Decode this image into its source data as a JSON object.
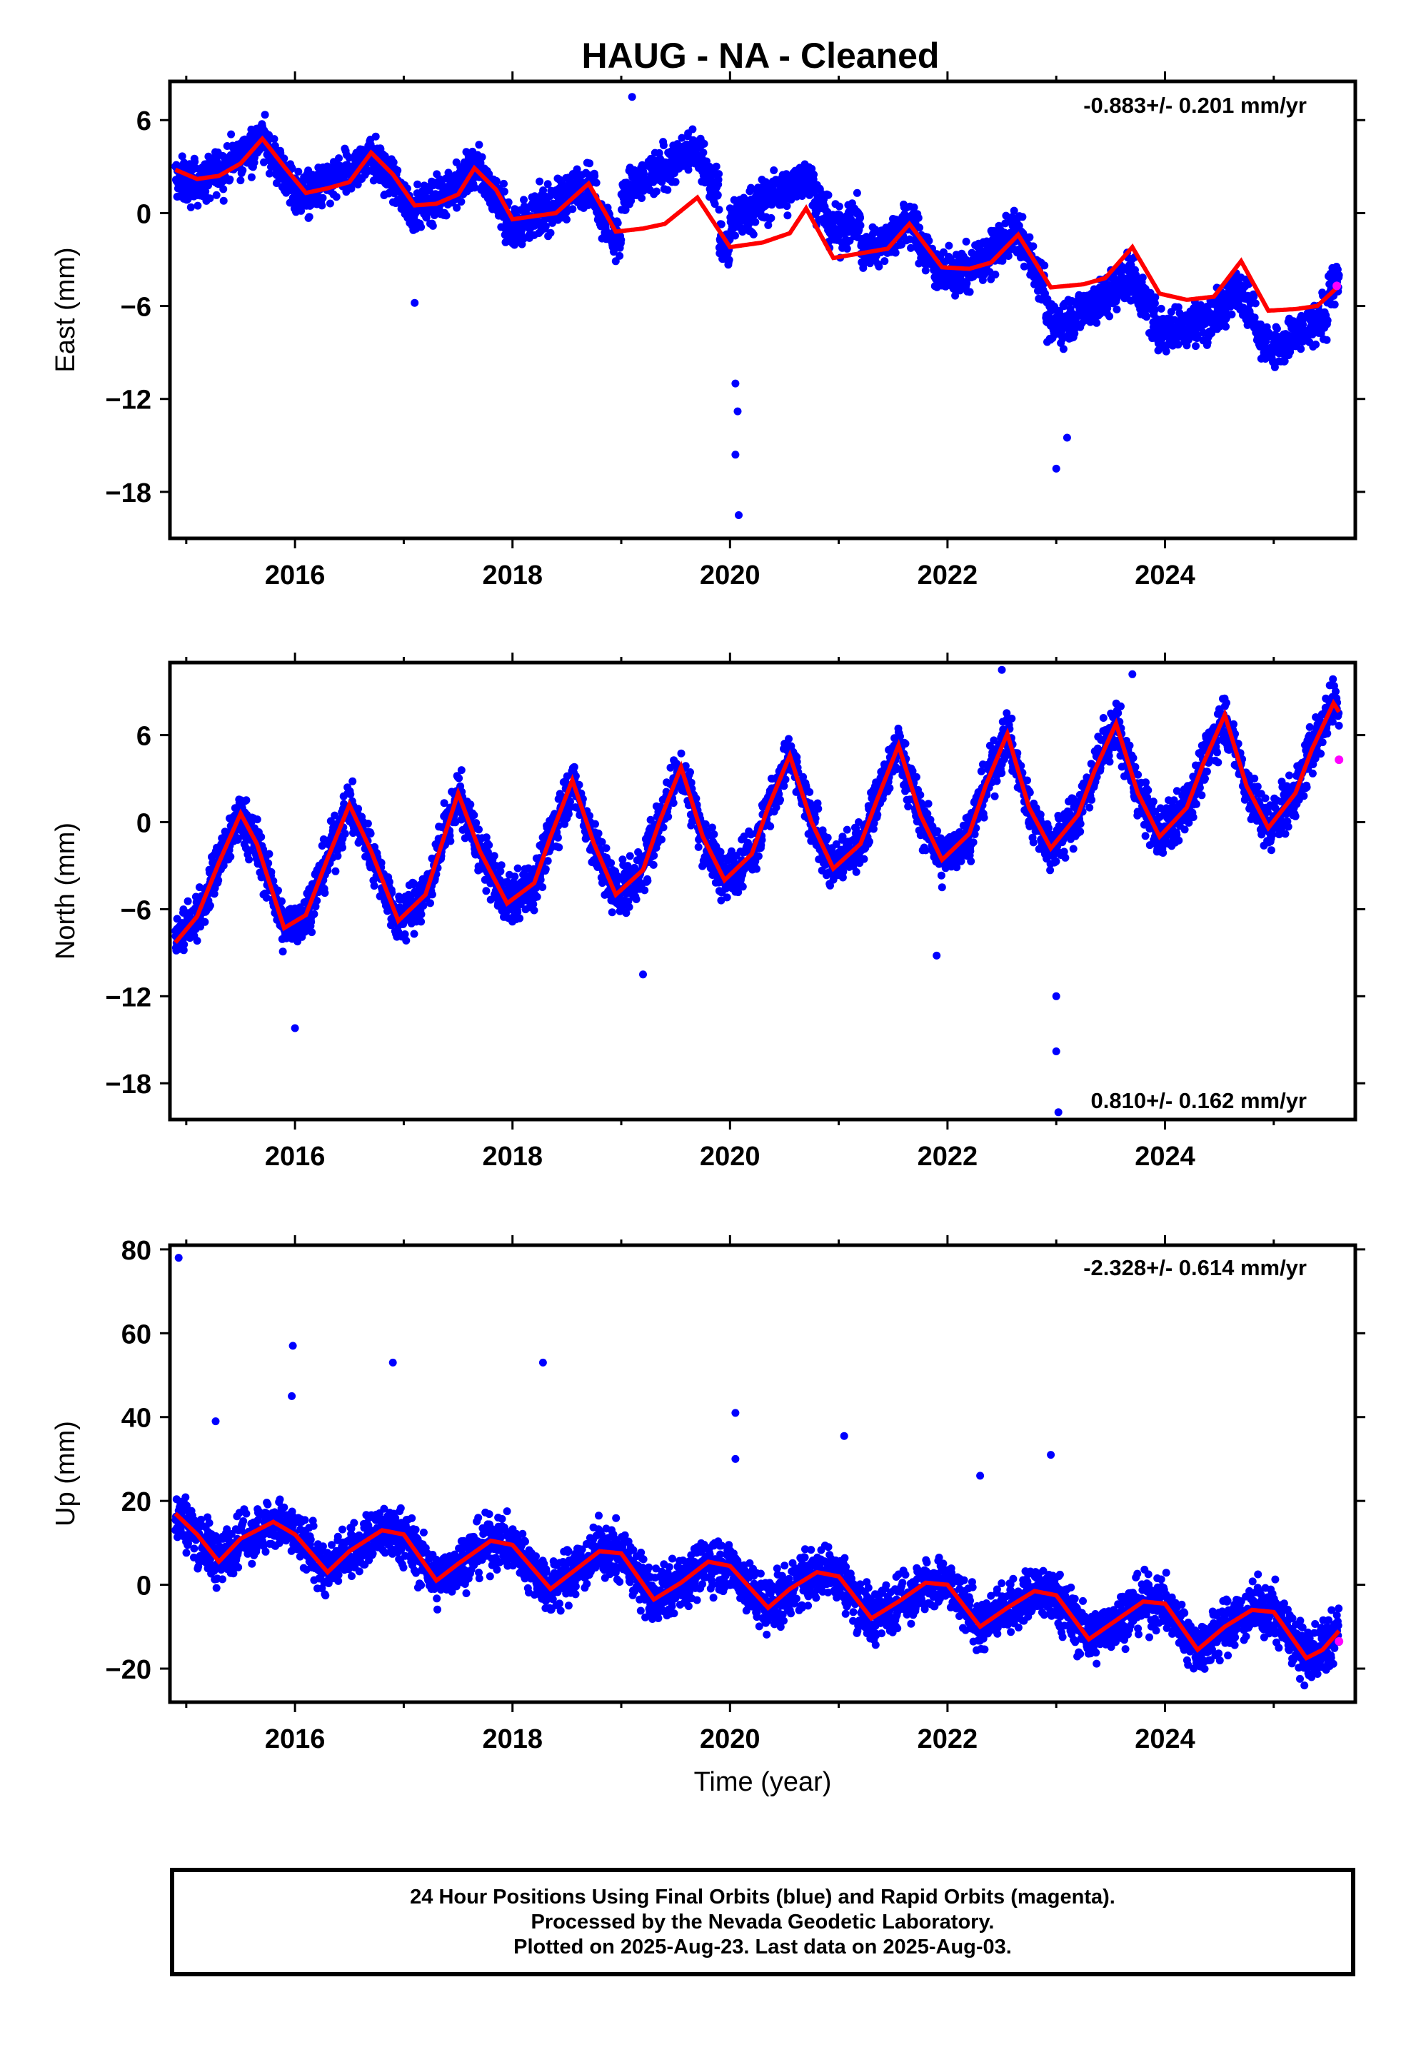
{
  "title": "HAUG  - NA - Cleaned",
  "xlabel": "Time (year)",
  "colors": {
    "final": "#0000ff",
    "rapid": "#ff00ff",
    "model": "#ff0000",
    "axis": "#000000"
  },
  "footer": {
    "line1": "24 Hour Positions Using Final Orbits (blue) and Rapid Orbits (magenta).",
    "line2": "Processed by the Nevada Geodetic Laboratory.",
    "line3": "Plotted on 2025-Aug-23. Last data on 2025-Aug-03."
  },
  "chart_data": [
    {
      "type": "scatter",
      "name": "east",
      "ylabel": "East (mm)",
      "rate": "-0.883+/- 0.201 mm/yr",
      "xlim": [
        2014.85,
        2025.75
      ],
      "ylim": [
        -21,
        8.5
      ],
      "xticks": [
        2016,
        2018,
        2020,
        2022,
        2024
      ],
      "yticks": [
        6,
        0,
        -6,
        -12,
        -18
      ],
      "ytick_labels": [
        "6",
        "0",
        "−6",
        "−12",
        "−18"
      ],
      "model": [
        [
          2014.9,
          2.8
        ],
        [
          2015.1,
          2.2
        ],
        [
          2015.3,
          2.4
        ],
        [
          2015.5,
          3.2
        ],
        [
          2015.7,
          4.8
        ],
        [
          2015.9,
          3.0
        ],
        [
          2016.1,
          1.3
        ],
        [
          2016.3,
          1.6
        ],
        [
          2016.5,
          2.0
        ],
        [
          2016.7,
          3.9
        ],
        [
          2016.9,
          2.5
        ],
        [
          2017.1,
          0.5
        ],
        [
          2017.3,
          0.6
        ],
        [
          2017.5,
          1.2
        ],
        [
          2017.65,
          2.9
        ],
        [
          2017.85,
          1.5
        ],
        [
          2018.0,
          -0.4
        ],
        [
          2018.2,
          -0.2
        ],
        [
          2018.4,
          0.0
        ],
        [
          2018.7,
          1.9
        ],
        [
          2018.95,
          -1.2
        ],
        [
          2019.2,
          -1.0
        ],
        [
          2019.4,
          -0.7
        ],
        [
          2019.7,
          1.0
        ],
        [
          2020.0,
          -2.2
        ],
        [
          2020.3,
          -1.9
        ],
        [
          2020.55,
          -1.3
        ],
        [
          2020.7,
          0.3
        ],
        [
          2020.95,
          -2.9
        ],
        [
          2021.2,
          -2.6
        ],
        [
          2021.45,
          -2.3
        ],
        [
          2021.65,
          -0.7
        ],
        [
          2021.95,
          -3.5
        ],
        [
          2022.2,
          -3.6
        ],
        [
          2022.4,
          -3.2
        ],
        [
          2022.65,
          -1.4
        ],
        [
          2022.95,
          -4.8
        ],
        [
          2023.25,
          -4.6
        ],
        [
          2023.45,
          -4.2
        ],
        [
          2023.7,
          -2.2
        ],
        [
          2023.95,
          -5.2
        ],
        [
          2024.2,
          -5.6
        ],
        [
          2024.45,
          -5.4
        ],
        [
          2024.7,
          -3.1
        ],
        [
          2024.95,
          -6.3
        ],
        [
          2025.2,
          -6.2
        ],
        [
          2025.4,
          -6.0
        ],
        [
          2025.6,
          -4.7
        ]
      ],
      "rapid": [
        [
          2025.58,
          -4.7
        ]
      ],
      "amplitude": 2.2,
      "spread": 1.0
    },
    {
      "type": "scatter",
      "name": "north",
      "ylabel": "North (mm)",
      "rate": "0.810+/- 0.162 mm/yr",
      "xlim": [
        2014.85,
        2025.75
      ],
      "ylim": [
        -20.5,
        11
      ],
      "xticks": [
        2016,
        2018,
        2020,
        2022,
        2024
      ],
      "yticks": [
        6,
        0,
        -6,
        -12,
        -18
      ],
      "ytick_labels": [
        "6",
        "0",
        "−6",
        "−12",
        "−18"
      ],
      "model": [
        [
          2014.9,
          -8.3
        ],
        [
          2015.1,
          -6.5
        ],
        [
          2015.3,
          -2.8
        ],
        [
          2015.5,
          0.6
        ],
        [
          2015.65,
          -1.5
        ],
        [
          2015.9,
          -7.3
        ],
        [
          2016.1,
          -6.4
        ],
        [
          2016.3,
          -2.5
        ],
        [
          2016.5,
          1.2
        ],
        [
          2016.7,
          -2.0
        ],
        [
          2016.95,
          -6.8
        ],
        [
          2017.2,
          -5.0
        ],
        [
          2017.35,
          -1.5
        ],
        [
          2017.5,
          2.0
        ],
        [
          2017.7,
          -2.0
        ],
        [
          2017.95,
          -5.6
        ],
        [
          2018.2,
          -4.2
        ],
        [
          2018.35,
          -1.0
        ],
        [
          2018.55,
          2.9
        ],
        [
          2018.75,
          -1.5
        ],
        [
          2018.95,
          -5.0
        ],
        [
          2019.2,
          -3.3
        ],
        [
          2019.35,
          0.0
        ],
        [
          2019.55,
          3.8
        ],
        [
          2019.75,
          -1.0
        ],
        [
          2019.95,
          -4.0
        ],
        [
          2020.2,
          -2.2
        ],
        [
          2020.35,
          1.0
        ],
        [
          2020.55,
          4.6
        ],
        [
          2020.75,
          0.0
        ],
        [
          2020.95,
          -3.2
        ],
        [
          2021.2,
          -1.5
        ],
        [
          2021.35,
          1.5
        ],
        [
          2021.55,
          5.3
        ],
        [
          2021.75,
          0.5
        ],
        [
          2021.95,
          -2.6
        ],
        [
          2022.2,
          -0.8
        ],
        [
          2022.35,
          2.5
        ],
        [
          2022.55,
          6.1
        ],
        [
          2022.75,
          1.0
        ],
        [
          2022.95,
          -1.8
        ],
        [
          2023.2,
          0.5
        ],
        [
          2023.35,
          3.5
        ],
        [
          2023.55,
          6.8
        ],
        [
          2023.75,
          2.0
        ],
        [
          2023.95,
          -1.0
        ],
        [
          2024.2,
          1.0
        ],
        [
          2024.35,
          4.0
        ],
        [
          2024.55,
          7.4
        ],
        [
          2024.75,
          2.5
        ],
        [
          2024.95,
          -0.4
        ],
        [
          2025.2,
          2.0
        ],
        [
          2025.35,
          5.0
        ],
        [
          2025.55,
          8.2
        ],
        [
          2025.6,
          7.6
        ]
      ],
      "rapid": [
        [
          2025.6,
          4.3
        ]
      ],
      "amplitude": 0.0,
      "spread": 1.2
    },
    {
      "type": "scatter",
      "name": "up",
      "ylabel": "Up (mm)",
      "rate": "-2.328+/- 0.614 mm/yr",
      "xlim": [
        2014.85,
        2025.75
      ],
      "ylim": [
        -28,
        81
      ],
      "xticks": [
        2016,
        2018,
        2020,
        2022,
        2024
      ],
      "yticks": [
        80,
        60,
        40,
        20,
        0,
        -20
      ],
      "ytick_labels": [
        "80",
        "60",
        "40",
        "20",
        "0",
        "−20"
      ],
      "model": [
        [
          2014.9,
          17.0
        ],
        [
          2015.1,
          12.0
        ],
        [
          2015.3,
          5.5
        ],
        [
          2015.5,
          11.0
        ],
        [
          2015.8,
          15.0
        ],
        [
          2016.0,
          12.0
        ],
        [
          2016.3,
          3.0
        ],
        [
          2016.5,
          8.0
        ],
        [
          2016.8,
          13.0
        ],
        [
          2017.0,
          12.0
        ],
        [
          2017.3,
          1.0
        ],
        [
          2017.5,
          5.0
        ],
        [
          2017.8,
          10.5
        ],
        [
          2018.0,
          9.5
        ],
        [
          2018.35,
          -1.0
        ],
        [
          2018.55,
          3.0
        ],
        [
          2018.8,
          8.0
        ],
        [
          2019.0,
          7.5
        ],
        [
          2019.3,
          -3.5
        ],
        [
          2019.55,
          0.5
        ],
        [
          2019.8,
          5.5
        ],
        [
          2020.0,
          4.5
        ],
        [
          2020.35,
          -5.5
        ],
        [
          2020.55,
          -1.0
        ],
        [
          2020.8,
          3.0
        ],
        [
          2021.0,
          2.0
        ],
        [
          2021.3,
          -8.0
        ],
        [
          2021.55,
          -4.0
        ],
        [
          2021.8,
          0.5
        ],
        [
          2022.0,
          0.0
        ],
        [
          2022.3,
          -10.0
        ],
        [
          2022.55,
          -5.5
        ],
        [
          2022.8,
          -1.5
        ],
        [
          2023.0,
          -2.5
        ],
        [
          2023.3,
          -13.0
        ],
        [
          2023.55,
          -8.5
        ],
        [
          2023.8,
          -4.0
        ],
        [
          2024.0,
          -4.5
        ],
        [
          2024.3,
          -15.5
        ],
        [
          2024.55,
          -10.0
        ],
        [
          2024.8,
          -6.0
        ],
        [
          2025.0,
          -6.5
        ],
        [
          2025.3,
          -17.5
        ],
        [
          2025.45,
          -15.5
        ],
        [
          2025.6,
          -11.0
        ]
      ],
      "rapid": [
        [
          2025.6,
          -13.5
        ]
      ],
      "amplitude": 0.0,
      "spread": 4.5,
      "outliers": [
        [
          2014.93,
          78
        ],
        [
          2015.27,
          39
        ],
        [
          2015.98,
          57
        ],
        [
          2015.97,
          45
        ],
        [
          2016.9,
          53
        ],
        [
          2018.28,
          53
        ],
        [
          2020.05,
          41
        ],
        [
          2020.05,
          30
        ],
        [
          2021.05,
          35.5
        ],
        [
          2022.95,
          31
        ],
        [
          2022.3,
          26
        ]
      ]
    }
  ]
}
